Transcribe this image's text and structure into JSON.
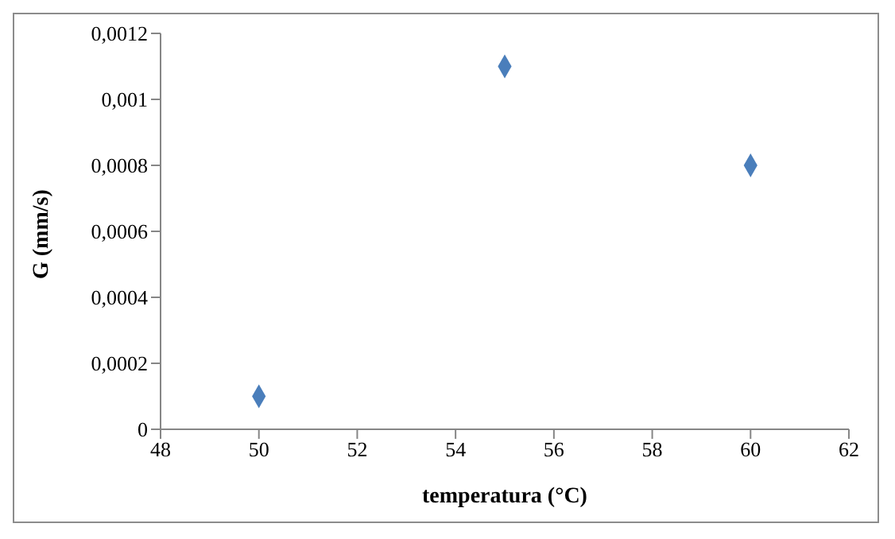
{
  "chart_data": {
    "type": "scatter",
    "xlabel": "temperatura (°C)",
    "ylabel": "G (mm/s)",
    "x": [
      50,
      55,
      60
    ],
    "series": [
      {
        "color": "#4a7ebb",
        "values": [
          0.0001,
          0.0011,
          0.0008
        ]
      }
    ],
    "xlim": [
      48,
      62
    ],
    "xticks": [
      48,
      50,
      52,
      54,
      56,
      58,
      60,
      62
    ],
    "ylim": [
      0,
      0.0012
    ],
    "yticks": [
      0,
      {
        "value": 0.0002,
        "label": "0,0002"
      },
      {
        "value": 0.0004,
        "label": "0,0004"
      },
      {
        "value": 0.0006,
        "label": "0,0006"
      },
      {
        "value": 0.0008,
        "label": "0,0008"
      },
      {
        "value": 0.001,
        "label": "0,001"
      },
      {
        "value": 0.0012,
        "label": "0,0012"
      }
    ],
    "marker": "diamond"
  }
}
